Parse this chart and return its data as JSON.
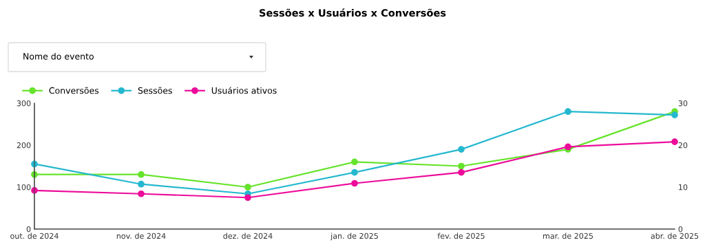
{
  "chart_data": {
    "type": "line",
    "title": "Sessões x Usuários x Conversões",
    "annotations": [
      "Nome do evento"
    ],
    "categories": [
      "out. de 2024",
      "nov. de 2024",
      "dez. de 2024",
      "jan. de 2025",
      "fev. de 2025",
      "mar. de 2025",
      "abr. de 2025"
    ],
    "series": [
      {
        "name": "Conversões",
        "color": "#66e32b",
        "axis": "y2",
        "values": [
          13,
          13,
          10,
          16,
          15,
          19,
          28
        ]
      },
      {
        "name": "Sessões",
        "color": "#25b8cf",
        "values": [
          155,
          107,
          84,
          135,
          190,
          280,
          272
        ]
      },
      {
        "name": "Usuários ativos",
        "color": "#ec0c9a",
        "values": [
          92,
          84,
          75,
          109,
          135,
          196,
          208
        ]
      }
    ],
    "ylim": [
      0,
      300
    ],
    "yticks": [
      0,
      100,
      200,
      300
    ],
    "y2lim": [
      0,
      30
    ],
    "y2ticks": [
      0,
      10,
      20,
      30
    ],
    "grid": false,
    "legend": "top left",
    "marker": "circle",
    "line_style": "solid"
  }
}
